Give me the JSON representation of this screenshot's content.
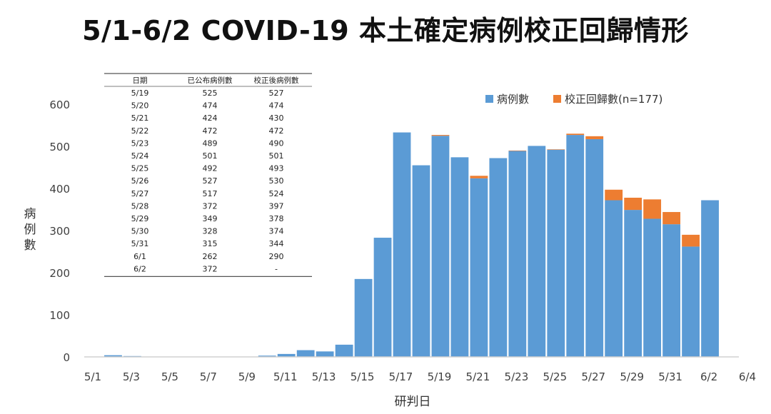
{
  "title": "5/1-6/2 COVID-19 本土確定病例校正回歸情形",
  "colors": {
    "cases": "#5b9bd5",
    "correction": "#ed7d31"
  },
  "chart_data": {
    "type": "bar",
    "stacked": true,
    "categories": [
      "5/1",
      "5/2",
      "5/3",
      "5/4",
      "5/5",
      "5/6",
      "5/7",
      "5/8",
      "5/9",
      "5/10",
      "5/11",
      "5/12",
      "5/13",
      "5/14",
      "5/15",
      "5/16",
      "5/17",
      "5/18",
      "5/19",
      "5/20",
      "5/21",
      "5/22",
      "5/23",
      "5/24",
      "5/25",
      "5/26",
      "5/27",
      "5/28",
      "5/29",
      "5/30",
      "5/31",
      "6/1",
      "6/2",
      "6/3"
    ],
    "x_tick_labels": [
      "5/1",
      "5/3",
      "5/5",
      "5/7",
      "5/9",
      "5/11",
      "5/13",
      "5/15",
      "5/17",
      "5/19",
      "5/21",
      "5/23",
      "5/25",
      "5/27",
      "5/29",
      "5/31",
      "6/2",
      "6/4"
    ],
    "series": [
      {
        "name": "病例數",
        "color": "#5b9bd5",
        "values": [
          0,
          4,
          2,
          0,
          0,
          0,
          0,
          0,
          0,
          3,
          7,
          16,
          13,
          29,
          185,
          283,
          533,
          455,
          525,
          474,
          424,
          472,
          489,
          501,
          492,
          527,
          517,
          372,
          349,
          328,
          315,
          262,
          372,
          0
        ]
      },
      {
        "name": "校正回歸數(n=177)",
        "color": "#ed7d31",
        "values": [
          0,
          0,
          0,
          0,
          0,
          0,
          0,
          0,
          0,
          0,
          0,
          0,
          0,
          0,
          0,
          0,
          0,
          0,
          2,
          0,
          6,
          0,
          1,
          0,
          1,
          3,
          7,
          25,
          29,
          46,
          29,
          28,
          0,
          0
        ]
      }
    ],
    "xlabel": "研判日",
    "ylabel": "病例數",
    "ylim": [
      0,
      600
    ],
    "yticks": [
      "0",
      "100",
      "200",
      "300",
      "400",
      "500",
      "600"
    ],
    "legend_position": "top-right",
    "grid": false
  },
  "table": {
    "headers": [
      "日期",
      "已公布病例數",
      "校正後病例數"
    ],
    "rows": [
      [
        "5/19",
        "525",
        "527"
      ],
      [
        "5/20",
        "474",
        "474"
      ],
      [
        "5/21",
        "424",
        "430"
      ],
      [
        "5/22",
        "472",
        "472"
      ],
      [
        "5/23",
        "489",
        "490"
      ],
      [
        "5/24",
        "501",
        "501"
      ],
      [
        "5/25",
        "492",
        "493"
      ],
      [
        "5/26",
        "527",
        "530"
      ],
      [
        "5/27",
        "517",
        "524"
      ],
      [
        "5/28",
        "372",
        "397"
      ],
      [
        "5/29",
        "349",
        "378"
      ],
      [
        "5/30",
        "328",
        "374"
      ],
      [
        "5/31",
        "315",
        "344"
      ],
      [
        "6/1",
        "262",
        "290"
      ],
      [
        "6/2",
        "372",
        "-"
      ]
    ]
  }
}
